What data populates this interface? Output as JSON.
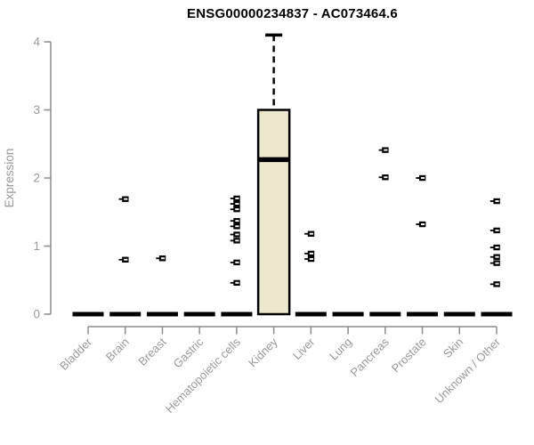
{
  "chart_data": {
    "type": "boxplot",
    "title": "ENSG00000234837 - AC073464.6",
    "xlabel": "",
    "ylabel": "Expression",
    "ylim": [
      0,
      4.15
    ],
    "yticks": [
      0,
      1,
      2,
      3,
      4
    ],
    "grid": false,
    "legend": "none",
    "categories": [
      "Bladder",
      "Brain",
      "Breast",
      "Gastric",
      "Hematopoietic cells",
      "Kidney",
      "Liver",
      "Lung",
      "Pancreas",
      "Prostate",
      "Skin",
      "Unknown / Other"
    ],
    "groups": [
      {
        "name": "Bladder",
        "zero_bar": true,
        "points": []
      },
      {
        "name": "Brain",
        "zero_bar": true,
        "points": [
          1.69,
          0.8
        ]
      },
      {
        "name": "Breast",
        "zero_bar": true,
        "points": [
          0.82
        ]
      },
      {
        "name": "Gastric",
        "zero_bar": true,
        "points": []
      },
      {
        "name": "Hematopoietic cells",
        "zero_bar": true,
        "points": [
          1.7,
          1.62,
          1.54,
          1.37,
          1.29,
          1.17,
          1.08,
          0.76,
          0.46
        ]
      },
      {
        "name": "Kidney",
        "zero_bar": false,
        "box": {
          "whisker_low": 0,
          "q1": 0,
          "median": 2.27,
          "q3": 3.0,
          "whisker_high": 4.1
        },
        "points": []
      },
      {
        "name": "Liver",
        "zero_bar": true,
        "points": [
          1.18,
          0.89,
          0.81
        ]
      },
      {
        "name": "Lung",
        "zero_bar": true,
        "points": []
      },
      {
        "name": "Pancreas",
        "zero_bar": true,
        "points": [
          2.41,
          2.01
        ]
      },
      {
        "name": "Prostate",
        "zero_bar": true,
        "points": [
          2.0,
          1.32
        ]
      },
      {
        "name": "Skin",
        "zero_bar": true,
        "points": []
      },
      {
        "name": "Unknown / Other",
        "zero_bar": true,
        "points": [
          1.66,
          1.23,
          0.98,
          0.84,
          0.75,
          0.44
        ]
      }
    ],
    "colors": {
      "box_fill": "#EDE8CD",
      "mark": "#000000",
      "axis": "#8C8C8C",
      "tick_label": "#999999",
      "title": "#000000",
      "background": "#FFFFFF"
    }
  }
}
